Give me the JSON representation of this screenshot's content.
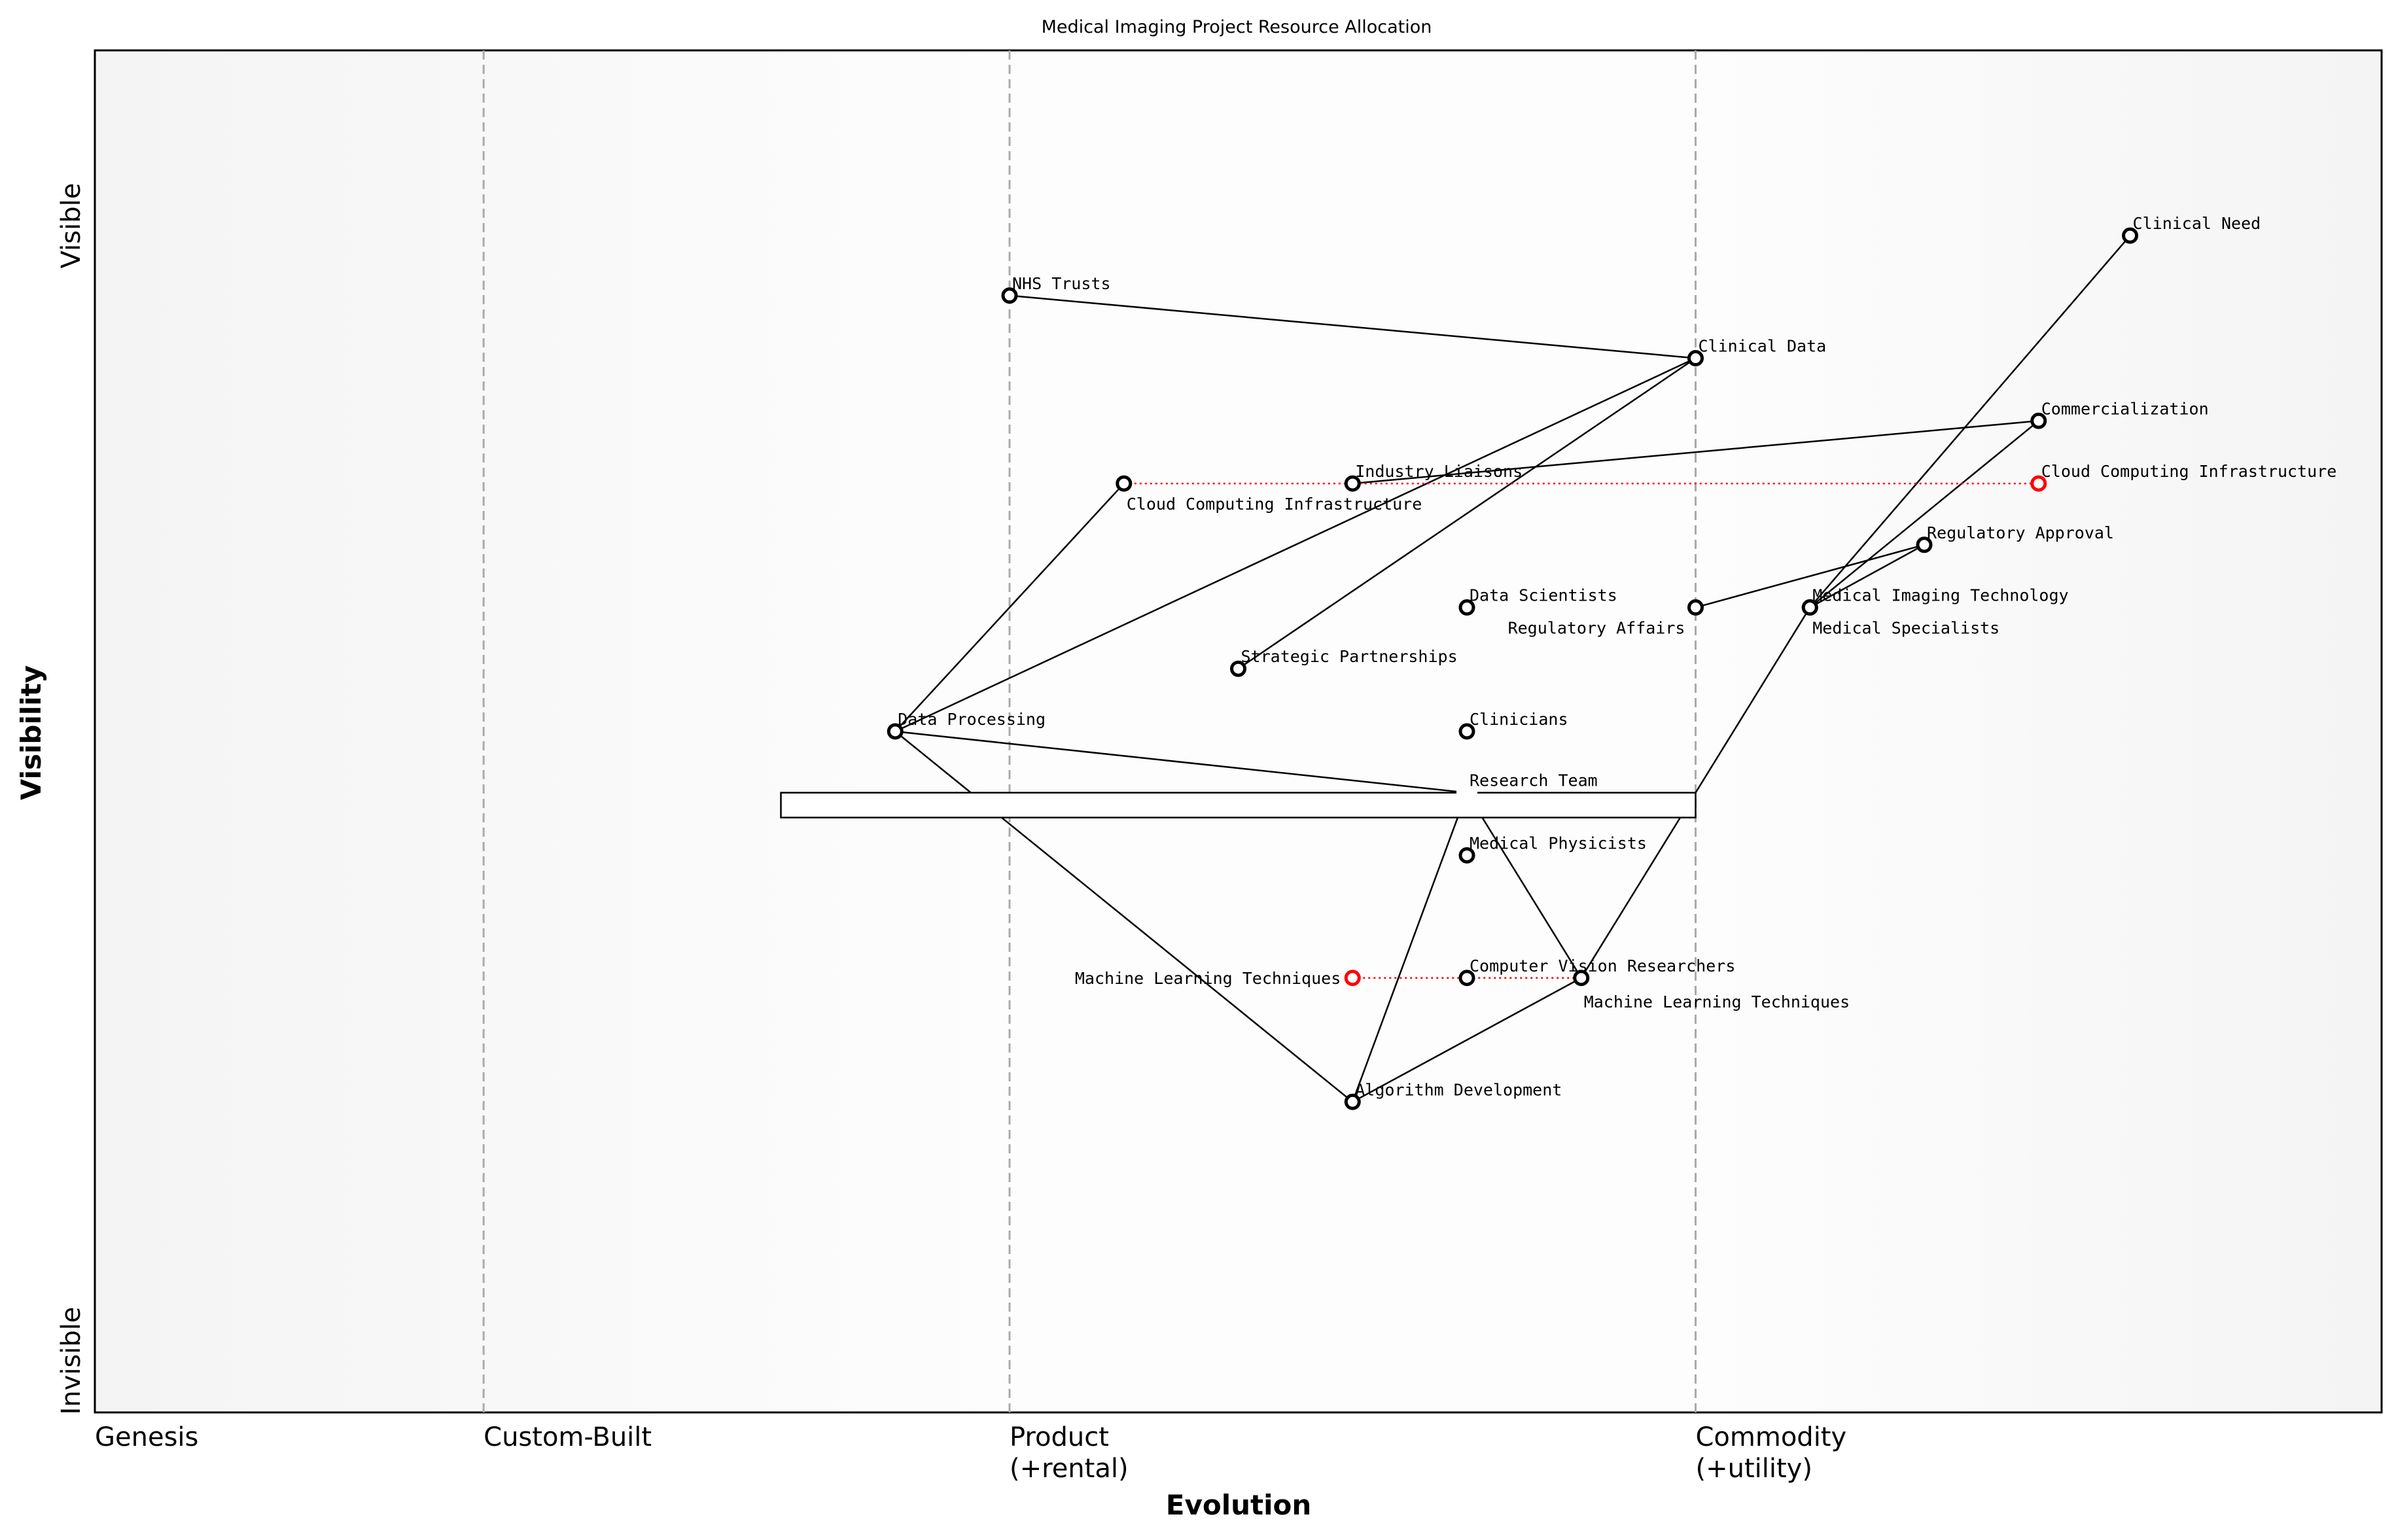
{
  "chart_data": {
    "type": "wardley-map",
    "title": "Medical Imaging Project Resource Allocation",
    "xlabel": "Evolution",
    "ylabel": "Visibility",
    "y_ticks": {
      "top": "Visible",
      "bottom": "Invisible"
    },
    "stages": [
      {
        "label": "Genesis",
        "x": 0.0
      },
      {
        "label": "Custom-Built",
        "x": 0.17
      },
      {
        "label": "Product\n(+rental)",
        "x": 0.4
      },
      {
        "label": "Commodity\n(+utility)",
        "x": 0.7
      }
    ],
    "xlim": [
      0,
      1
    ],
    "ylim": [
      0,
      1
    ],
    "components": [
      {
        "id": "nhs",
        "label": "NHS Trusts",
        "x": 0.4,
        "y": 0.82
      },
      {
        "id": "clinical_data",
        "label": "Clinical Data",
        "x": 0.7,
        "y": 0.774
      },
      {
        "id": "clinical_need",
        "label": "Clinical Need",
        "x": 0.89,
        "y": 0.864
      },
      {
        "id": "commercialization",
        "label": "Commercialization",
        "x": 0.85,
        "y": 0.728
      },
      {
        "id": "cloud_evolved",
        "label": "Cloud Computing Infrastructure",
        "x": 0.85,
        "y": 0.682,
        "evolved": true
      },
      {
        "id": "cloud",
        "label": "Cloud Computing Infrastructure",
        "x": 0.45,
        "y": 0.682
      },
      {
        "id": "industry",
        "label": "Industry Liaisons",
        "x": 0.55,
        "y": 0.682
      },
      {
        "id": "reg_approval",
        "label": "Regulatory Approval",
        "x": 0.8,
        "y": 0.637
      },
      {
        "id": "data_scientists",
        "label": "Data Scientists",
        "x": 0.6,
        "y": 0.591
      },
      {
        "id": "reg_affairs",
        "label": "Regulatory Affairs",
        "x": 0.7,
        "y": 0.591
      },
      {
        "id": "med_specialists",
        "label": "Medical Specialists",
        "x": 0.75,
        "y": 0.591
      },
      {
        "id": "med_imaging",
        "label": "Medical Imaging Technology",
        "x": 0.75,
        "y": 0.591
      },
      {
        "id": "strategic",
        "label": "Strategic Partnerships",
        "x": 0.5,
        "y": 0.546
      },
      {
        "id": "data_processing",
        "label": "Data Processing",
        "x": 0.35,
        "y": 0.5
      },
      {
        "id": "clinicians",
        "label": "Clinicians",
        "x": 0.6,
        "y": 0.5
      },
      {
        "id": "research_team",
        "label": "Research Team",
        "x": 0.6,
        "y": 0.455,
        "hidden_marker": true
      },
      {
        "id": "med_physicists",
        "label": "Medical Physicists",
        "x": 0.6,
        "y": 0.409
      },
      {
        "id": "ml_old",
        "label": "Machine Learning Techniques",
        "x": 0.55,
        "y": 0.319,
        "evolved": true
      },
      {
        "id": "cv_researchers",
        "label": "Computer Vision Researchers",
        "x": 0.6,
        "y": 0.319
      },
      {
        "id": "ml",
        "label": "Machine Learning Techniques",
        "x": 0.65,
        "y": 0.319
      },
      {
        "id": "algo",
        "label": "Algorithm Development",
        "x": 0.55,
        "y": 0.228
      }
    ],
    "links": [
      [
        "nhs",
        "clinical_data"
      ],
      [
        "clinical_data",
        "data_processing"
      ],
      [
        "clinical_data",
        "strategic"
      ],
      [
        "industry",
        "commercialization"
      ],
      [
        "clinical_need",
        "med_imaging"
      ],
      [
        "med_imaging",
        "ml"
      ],
      [
        "commercialization",
        "med_imaging"
      ],
      [
        "reg_approval",
        "med_imaging"
      ],
      [
        "reg_approval",
        "reg_affairs"
      ],
      [
        "data_processing",
        "cloud"
      ],
      [
        "data_processing",
        "research_team"
      ],
      [
        "data_processing",
        "algo"
      ],
      [
        "research_team",
        "algo"
      ],
      [
        "research_team",
        "ml"
      ],
      [
        "algo",
        "ml"
      ]
    ],
    "evolve_links": [
      [
        "cloud",
        "cloud_evolved"
      ],
      [
        "ml_old",
        "ml"
      ]
    ],
    "pipeline": {
      "x_range": [
        0.3,
        0.7
      ],
      "y": 0.455
    }
  }
}
